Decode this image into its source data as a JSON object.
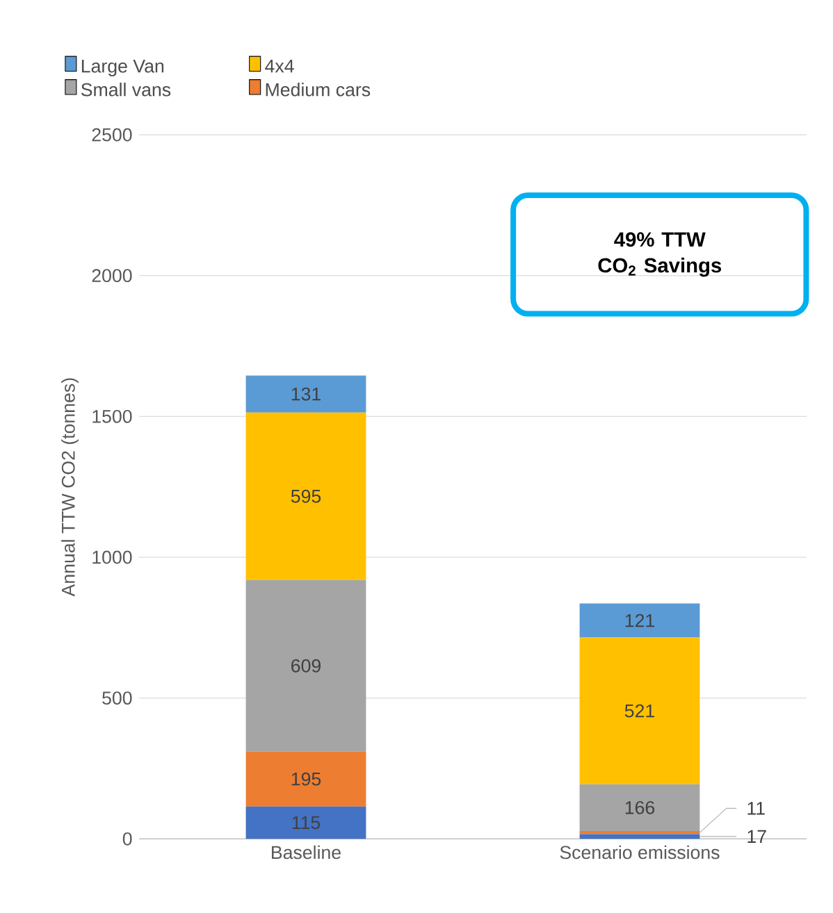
{
  "chart_data": {
    "type": "bar",
    "stacked": true,
    "categories": [
      "Baseline",
      "Scenario emissions"
    ],
    "series": [
      {
        "color": "#4472c4",
        "values": [
          115,
          17
        ]
      },
      {
        "name": "Medium cars",
        "color": "#ed7d31",
        "values": [
          195,
          11
        ]
      },
      {
        "name": "Small vans",
        "color": "#a5a5a5",
        "values": [
          609,
          166
        ]
      },
      {
        "name": "4x4",
        "color": "#ffc000",
        "values": [
          595,
          521
        ]
      },
      {
        "name": "Large Van",
        "color": "#5b9bd5",
        "values": [
          131,
          121
        ]
      }
    ],
    "ylabel": "Annual TTW CO2 (tonnes)",
    "ylim": [
      0,
      2500
    ],
    "yticks": [
      0,
      500,
      1000,
      1500,
      2000,
      2500
    ],
    "grid": "y",
    "legend": "top",
    "data_labels": true,
    "annotations": [
      "49% TTW CO$_{2}$ Savings"
    ]
  }
}
